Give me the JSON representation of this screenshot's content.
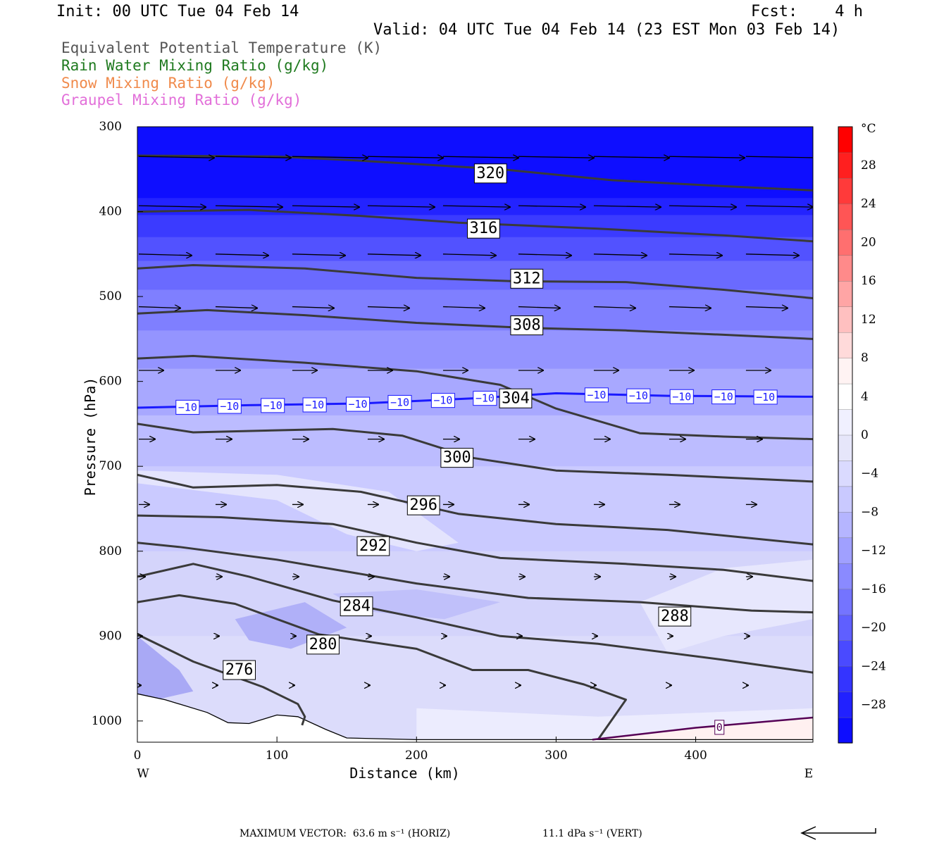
{
  "header": {
    "init": "Init: 00 UTC Tue 04 Feb 14",
    "fcst": "Fcst:    4 h",
    "valid": "Valid: 04 UTC Tue 04 Feb 14 (23 EST Mon 03 Feb 14)"
  },
  "fields": [
    {
      "label": "Equivalent Potential Temperature (K)",
      "color": "#555555"
    },
    {
      "label": "Rain Water Mixing Ratio (g/kg)",
      "color": "#1f7a1f"
    },
    {
      "label": "Snow Mixing Ratio (g/kg)",
      "color": "#f08a4b"
    },
    {
      "label": "Graupel Mixing Ratio (g/kg)",
      "color": "#e26fd9"
    }
  ],
  "chart_data": {
    "type": "cross-section",
    "xlabel": "Distance (km)",
    "ylabel": "Pressure (hPa)",
    "xlim": [
      0,
      484
    ],
    "ylim": [
      1025,
      300
    ],
    "x_ticks": [
      0,
      100,
      200,
      300,
      400
    ],
    "y_ticks": [
      300,
      400,
      500,
      600,
      700,
      800,
      900,
      1000
    ],
    "x_end_labels": {
      "left": "W",
      "right": "E"
    },
    "colorbar": {
      "unit": "°C",
      "ticks": [
        28,
        24,
        20,
        16,
        12,
        8,
        4,
        0,
        -4,
        -8,
        -12,
        -16,
        -20,
        -24,
        -28
      ],
      "colors": [
        "#0d0dff",
        "#2121ff",
        "#3434ff",
        "#4a4aff",
        "#5f5fff",
        "#7474ff",
        "#8a8aff",
        "#a0a0ff",
        "#b5b5ff",
        "#c9c9ff",
        "#dadaff",
        "#e6e6fa",
        "#f0f0ff",
        "#ffffff",
        "#fff3f3",
        "#ffdada",
        "#ffc0c0",
        "#ffa5a5",
        "#ff8a8a",
        "#ff6f6f",
        "#ff5555",
        "#ff3a3a",
        "#ff1f1f",
        "#ff0000"
      ]
    },
    "temperature_fill": [
      {
        "top": [
          [
            0,
            300
          ],
          [
            484,
            300
          ]
        ],
        "color": "#0e0eff"
      },
      {
        "top": [
          [
            0,
            384
          ],
          [
            484,
            384
          ]
        ],
        "color": "#2323ff"
      },
      {
        "top": [
          [
            0,
            404
          ],
          [
            484,
            404
          ]
        ],
        "color": "#3b3bff"
      },
      {
        "top": [
          [
            0,
            430
          ],
          [
            484,
            430
          ]
        ],
        "color": "#5252ff"
      },
      {
        "top": [
          [
            0,
            458
          ],
          [
            484,
            458
          ]
        ],
        "color": "#6a6aff"
      },
      {
        "top": [
          [
            0,
            492
          ],
          [
            484,
            492
          ]
        ],
        "color": "#7f7fff"
      },
      {
        "top": [
          [
            0,
            540
          ],
          [
            484,
            540
          ]
        ],
        "color": "#9494ff"
      },
      {
        "top": [
          [
            0,
            585
          ],
          [
            484,
            585
          ]
        ],
        "color": "#a8a8ff"
      },
      {
        "top": [
          [
            0,
            640
          ],
          [
            484,
            640
          ]
        ],
        "color": "#bcbcff"
      },
      {
        "top": [
          [
            0,
            700
          ],
          [
            484,
            700
          ]
        ],
        "color": "#cacaff"
      },
      {
        "top": [
          [
            0,
            800
          ],
          [
            484,
            800
          ]
        ],
        "color": "#d4d4fb"
      },
      {
        "top": [
          [
            0,
            900
          ],
          [
            484,
            900
          ]
        ],
        "color": "#dcdcfb"
      }
    ],
    "lighter_patches": [
      {
        "polygon": [
          [
            0,
            720
          ],
          [
            100,
            740
          ],
          [
            150,
            780
          ],
          [
            200,
            800
          ],
          [
            230,
            790
          ],
          [
            180,
            730
          ],
          [
            100,
            710
          ],
          [
            0,
            705
          ]
        ],
        "color": "#e4e4fd"
      },
      {
        "polygon": [
          [
            360,
            860
          ],
          [
            420,
            820
          ],
          [
            484,
            810
          ],
          [
            484,
            880
          ],
          [
            420,
            900
          ],
          [
            380,
            920
          ]
        ],
        "color": "#e7e7fd"
      },
      {
        "polygon": [
          [
            200,
            985
          ],
          [
            330,
            995
          ],
          [
            484,
            985
          ],
          [
            484,
            1020
          ],
          [
            200,
            1022
          ]
        ],
        "color": "#ececfe"
      },
      {
        "polygon": [
          [
            330,
            1022
          ],
          [
            400,
            1008
          ],
          [
            484,
            997
          ],
          [
            484,
            1022
          ]
        ],
        "color": "#fff0f0"
      }
    ],
    "darker_patches": [
      {
        "polygon": [
          [
            0,
            900
          ],
          [
            30,
            940
          ],
          [
            40,
            965
          ],
          [
            0,
            980
          ]
        ],
        "color": "#a9a9f5"
      },
      {
        "polygon": [
          [
            70,
            880
          ],
          [
            120,
            860
          ],
          [
            150,
            890
          ],
          [
            110,
            915
          ],
          [
            80,
            905
          ]
        ],
        "color": "#b0b0f8"
      },
      {
        "polygon": [
          [
            140,
            850
          ],
          [
            200,
            845
          ],
          [
            260,
            860
          ],
          [
            220,
            880
          ],
          [
            160,
            870
          ]
        ],
        "color": "#c0c0fa"
      }
    ],
    "terrain": [
      [
        0,
        968
      ],
      [
        20,
        975
      ],
      [
        50,
        990
      ],
      [
        65,
        1002
      ],
      [
        80,
        1003
      ],
      [
        100,
        993
      ],
      [
        115,
        995
      ],
      [
        135,
        1010
      ],
      [
        150,
        1020
      ],
      [
        200,
        1022
      ],
      [
        300,
        1022
      ],
      [
        400,
        1022
      ],
      [
        484,
        1022
      ]
    ],
    "theta_e_contours": [
      {
        "value": 320,
        "points": [
          [
            0,
            334
          ],
          [
            100,
            335
          ],
          [
            160,
            340
          ],
          [
            260,
            350
          ],
          [
            340,
            363
          ],
          [
            420,
            370
          ],
          [
            484,
            375
          ]
        ],
        "label_at": [
          253,
          355
        ]
      },
      {
        "value": 316,
        "points": [
          [
            0,
            400
          ],
          [
            80,
            398
          ],
          [
            160,
            405
          ],
          [
            230,
            413
          ],
          [
            330,
            420
          ],
          [
            420,
            428
          ],
          [
            484,
            435
          ]
        ],
        "label_at": [
          248,
          420
        ]
      },
      {
        "value": 312,
        "points": [
          [
            0,
            467
          ],
          [
            40,
            463
          ],
          [
            120,
            467
          ],
          [
            200,
            478
          ],
          [
            270,
            482
          ],
          [
            350,
            483
          ],
          [
            420,
            492
          ],
          [
            484,
            502
          ]
        ],
        "label_at": [
          279,
          479
        ]
      },
      {
        "value": 308,
        "points": [
          [
            0,
            520
          ],
          [
            50,
            516
          ],
          [
            120,
            522
          ],
          [
            200,
            531
          ],
          [
            280,
            537
          ],
          [
            350,
            540
          ],
          [
            420,
            545
          ],
          [
            484,
            550
          ]
        ],
        "label_at": [
          279,
          534
        ]
      },
      {
        "value": 304,
        "points": [
          [
            0,
            573
          ],
          [
            40,
            570
          ],
          [
            120,
            578
          ],
          [
            200,
            588
          ],
          [
            260,
            604
          ],
          [
            300,
            632
          ],
          [
            360,
            661
          ],
          [
            420,
            665
          ],
          [
            484,
            668
          ]
        ],
        "label_at": [
          271,
          620
        ]
      },
      {
        "value": 300,
        "points": [
          [
            0,
            650
          ],
          [
            40,
            660
          ],
          [
            140,
            656
          ],
          [
            190,
            664
          ],
          [
            240,
            690
          ],
          [
            300,
            705
          ],
          [
            380,
            710
          ],
          [
            484,
            718
          ]
        ],
        "label_at": [
          229,
          690
        ]
      },
      {
        "value": 296,
        "points": [
          [
            0,
            710
          ],
          [
            40,
            725
          ],
          [
            100,
            722
          ],
          [
            160,
            730
          ],
          [
            230,
            756
          ],
          [
            300,
            768
          ],
          [
            380,
            775
          ],
          [
            484,
            792
          ]
        ],
        "label_at": [
          205,
          746
        ]
      },
      {
        "value": 292,
        "points": [
          [
            0,
            758
          ],
          [
            60,
            760
          ],
          [
            140,
            768
          ],
          [
            200,
            790
          ],
          [
            260,
            808
          ],
          [
            350,
            815
          ],
          [
            420,
            822
          ],
          [
            484,
            835
          ]
        ],
        "label_at": [
          169,
          794
        ]
      },
      {
        "value": 288,
        "points": [
          [
            0,
            790
          ],
          [
            30,
            795
          ],
          [
            100,
            810
          ],
          [
            200,
            838
          ],
          [
            280,
            855
          ],
          [
            360,
            860
          ],
          [
            440,
            870
          ],
          [
            484,
            872
          ]
        ],
        "label_at": [
          385,
          877
        ]
      },
      {
        "value": 284,
        "points": [
          [
            0,
            830
          ],
          [
            40,
            815
          ],
          [
            80,
            830
          ],
          [
            140,
            858
          ],
          [
            200,
            878
          ],
          [
            260,
            900
          ],
          [
            330,
            909
          ],
          [
            420,
            928
          ],
          [
            484,
            943
          ]
        ],
        "label_at": [
          157,
          865
        ]
      },
      {
        "value": 280,
        "points": [
          [
            0,
            860
          ],
          [
            30,
            852
          ],
          [
            70,
            862
          ],
          [
            130,
            898
          ],
          [
            200,
            915
          ],
          [
            240,
            940
          ],
          [
            280,
            940
          ],
          [
            320,
            957
          ],
          [
            350,
            975
          ],
          [
            330,
            1022
          ]
        ],
        "label_at": [
          133,
          910
        ]
      },
      {
        "value": 276,
        "points": [
          [
            0,
            898
          ],
          [
            40,
            930
          ],
          [
            90,
            960
          ],
          [
            115,
            980
          ],
          [
            120,
            995
          ],
          [
            118,
            1005
          ]
        ],
        "label_at": [
          73,
          940
        ]
      }
    ],
    "isotherm_minus10": {
      "value": -10,
      "color": "#1a1aff",
      "points": [
        [
          0,
          631
        ],
        [
          80,
          628
        ],
        [
          160,
          626
        ],
        [
          240,
          620
        ],
        [
          300,
          614
        ],
        [
          380,
          617
        ],
        [
          484,
          618
        ]
      ],
      "label_xs": [
        36,
        66,
        97,
        127,
        158,
        188,
        219,
        249,
        329,
        359,
        390,
        420,
        450
      ]
    },
    "isotherm_zero": {
      "value": 0,
      "color": "#550055",
      "points": [
        [
          326,
          1022
        ],
        [
          400,
          1008
        ],
        [
          484,
          996
        ]
      ],
      "label_at": [
        417,
        1005
      ]
    },
    "wind_vectors": [
      {
        "p": 335,
        "xs": [
          0,
          55,
          110,
          164,
          218,
          272,
          326,
          380,
          435
        ],
        "len": [
          54,
          54,
          54,
          54,
          54,
          54,
          54,
          54,
          54
        ]
      },
      {
        "p": 393,
        "xs": [
          0,
          55,
          110,
          164,
          218,
          272,
          326,
          380,
          435
        ],
        "len": [
          48,
          48,
          48,
          48,
          48,
          48,
          48,
          48,
          48
        ]
      },
      {
        "p": 450,
        "xs": [
          0,
          55,
          110,
          164,
          218,
          272,
          326,
          380,
          435
        ],
        "len": [
          38,
          38,
          38,
          38,
          38,
          38,
          38,
          38,
          38
        ]
      },
      {
        "p": 512,
        "xs": [
          0,
          55,
          110,
          164,
          218,
          272,
          326,
          380,
          435
        ],
        "len": [
          30,
          30,
          30,
          30,
          30,
          30,
          30,
          30,
          30
        ]
      },
      {
        "p": 587,
        "xs": [
          0,
          55,
          110,
          164,
          218,
          272,
          326,
          380,
          435
        ],
        "len": [
          18,
          18,
          18,
          18,
          18,
          18,
          18,
          18,
          18
        ]
      },
      {
        "p": 668,
        "xs": [
          0,
          55,
          110,
          164,
          218,
          272,
          326,
          380,
          435
        ],
        "len": [
          12,
          12,
          12,
          12,
          12,
          12,
          12,
          12,
          12
        ]
      },
      {
        "p": 745,
        "xs": [
          0,
          55,
          110,
          164,
          218,
          272,
          326,
          380,
          435
        ],
        "len": [
          8,
          8,
          8,
          8,
          8,
          8,
          8,
          8,
          8
        ]
      },
      {
        "p": 830,
        "xs": [
          0,
          55,
          110,
          164,
          218,
          272,
          326,
          380,
          435
        ],
        "len": [
          5,
          5,
          5,
          5,
          5,
          5,
          5,
          5,
          5
        ]
      },
      {
        "p": 900,
        "xs": [
          0,
          55,
          110,
          164,
          218,
          272,
          326,
          380,
          435
        ],
        "len": [
          3,
          3,
          3,
          3,
          3,
          3,
          3,
          3,
          3
        ]
      },
      {
        "p": 958,
        "xs": [
          0,
          55,
          110,
          164,
          218,
          272,
          326,
          380,
          435
        ],
        "len": [
          2,
          2,
          2,
          2,
          2,
          2,
          2,
          2,
          2
        ]
      }
    ]
  },
  "footer": {
    "max_vector": "MAXIMUM VECTOR:  63.6 m s⁻¹ (HORIZ)",
    "vert": "11.1 dPa s⁻¹ (VERT)"
  }
}
